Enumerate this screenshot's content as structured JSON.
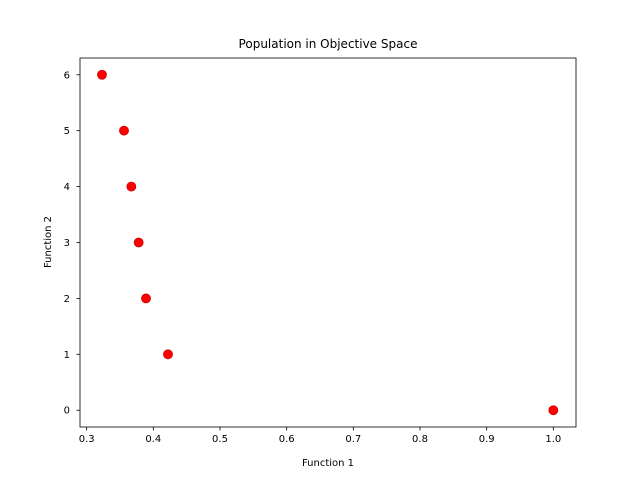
{
  "chart_data": {
    "type": "scatter",
    "title": "Population in Objective Space",
    "xlabel": "Function 1",
    "ylabel": "Function 2",
    "xlim": [
      0.29,
      1.034
    ],
    "ylim": [
      -0.3,
      6.3
    ],
    "xticks": [
      0.3,
      0.4,
      0.5,
      0.6,
      0.7,
      0.8,
      0.9,
      1.0
    ],
    "xtick_labels": [
      "0.3",
      "0.4",
      "0.5",
      "0.6",
      "0.7",
      "0.8",
      "0.9",
      "1.0"
    ],
    "yticks": [
      0,
      1,
      2,
      3,
      4,
      5,
      6
    ],
    "ytick_labels": [
      "0",
      "1",
      "2",
      "3",
      "4",
      "5",
      "6"
    ],
    "grid": false,
    "marker_color": "#ff0000",
    "points": [
      {
        "x": 0.323,
        "y": 6
      },
      {
        "x": 0.356,
        "y": 5
      },
      {
        "x": 0.367,
        "y": 4
      },
      {
        "x": 0.378,
        "y": 3
      },
      {
        "x": 0.389,
        "y": 2
      },
      {
        "x": 0.422,
        "y": 1
      },
      {
        "x": 1.0,
        "y": 0
      }
    ]
  }
}
